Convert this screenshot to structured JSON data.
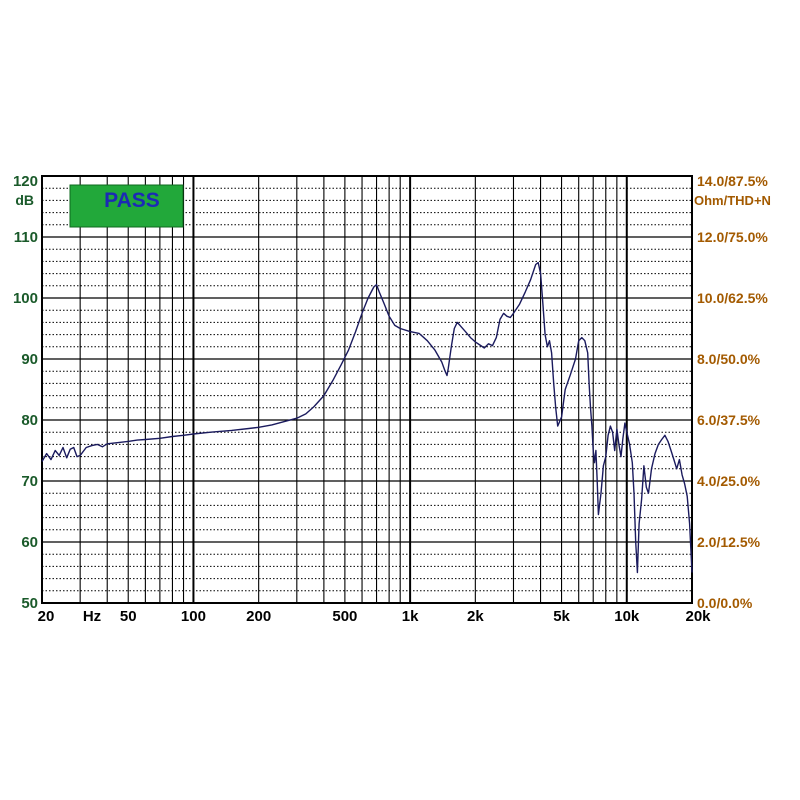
{
  "colors": {
    "background": "#ffffff",
    "grid": "#000000",
    "curve": "#1b1b5e",
    "left_axis_text": "#1a5a2a",
    "right_axis_text": "#a35a00",
    "badge_fill": "#22a83a",
    "badge_text": "#1c2ab5"
  },
  "badge": {
    "label": "PASS"
  },
  "chart_data": {
    "type": "line",
    "x_scale": "log",
    "xlim": [
      20,
      20000
    ],
    "ylim": [
      50,
      120
    ],
    "grid": true,
    "x_ticks": [
      {
        "value": 20,
        "label": "20"
      },
      {
        "value": 50,
        "label": "50"
      },
      {
        "value": 100,
        "label": "100"
      },
      {
        "value": 200,
        "label": "200"
      },
      {
        "value": 500,
        "label": "500"
      },
      {
        "value": 1000,
        "label": "1k"
      },
      {
        "value": 2000,
        "label": "2k"
      },
      {
        "value": 5000,
        "label": "5k"
      },
      {
        "value": 10000,
        "label": "10k"
      },
      {
        "value": 20000,
        "label": "20k"
      }
    ],
    "x_unit": "Hz",
    "y_ticks": [
      {
        "value": 50,
        "label": "50"
      },
      {
        "value": 60,
        "label": "60"
      },
      {
        "value": 70,
        "label": "70"
      },
      {
        "value": 80,
        "label": "80"
      },
      {
        "value": 90,
        "label": "90"
      },
      {
        "value": 100,
        "label": "100"
      },
      {
        "value": 110,
        "label": "110"
      },
      {
        "value": 120,
        "label": "120"
      }
    ],
    "y_unit": "dB",
    "y2_ticks": [
      {
        "value": 50,
        "label": "0.0/0.0%"
      },
      {
        "value": 60,
        "label": "2.0/12.5%"
      },
      {
        "value": 70,
        "label": "4.0/25.0%"
      },
      {
        "value": 80,
        "label": "6.0/37.5%"
      },
      {
        "value": 90,
        "label": "8.0/50.0%"
      },
      {
        "value": 100,
        "label": "10.0/62.5%"
      },
      {
        "value": 110,
        "label": "12.0/75.0%"
      },
      {
        "value": 120,
        "label": "14.0/87.5%"
      }
    ],
    "y2_unit": "Ohm/THD+N",
    "series": [
      {
        "points": [
          [
            20,
            73.2
          ],
          [
            21,
            74.5
          ],
          [
            22,
            73.5
          ],
          [
            23,
            75.0
          ],
          [
            24,
            74.2
          ],
          [
            25,
            75.5
          ],
          [
            26,
            73.8
          ],
          [
            27,
            75.2
          ],
          [
            28,
            75.5
          ],
          [
            29,
            74.0
          ],
          [
            30,
            74.2
          ],
          [
            32,
            75.5
          ],
          [
            34,
            75.8
          ],
          [
            36,
            76.0
          ],
          [
            38,
            75.6
          ],
          [
            40,
            76.1
          ],
          [
            45,
            76.3
          ],
          [
            50,
            76.5
          ],
          [
            55,
            76.7
          ],
          [
            60,
            76.8
          ],
          [
            70,
            77.0
          ],
          [
            80,
            77.3
          ],
          [
            90,
            77.5
          ],
          [
            100,
            77.7
          ],
          [
            120,
            78.0
          ],
          [
            150,
            78.3
          ],
          [
            180,
            78.6
          ],
          [
            200,
            78.8
          ],
          [
            230,
            79.2
          ],
          [
            260,
            79.7
          ],
          [
            300,
            80.3
          ],
          [
            330,
            81.0
          ],
          [
            360,
            82.2
          ],
          [
            400,
            84.0
          ],
          [
            440,
            86.5
          ],
          [
            480,
            89.0
          ],
          [
            520,
            91.5
          ],
          [
            560,
            94.5
          ],
          [
            600,
            97.5
          ],
          [
            640,
            100.0
          ],
          [
            680,
            101.8
          ],
          [
            700,
            102.2
          ],
          [
            720,
            101.0
          ],
          [
            760,
            99.0
          ],
          [
            800,
            97.0
          ],
          [
            850,
            95.5
          ],
          [
            900,
            95.0
          ],
          [
            1000,
            94.5
          ],
          [
            1100,
            94.2
          ],
          [
            1200,
            93.0
          ],
          [
            1300,
            91.5
          ],
          [
            1400,
            89.5
          ],
          [
            1450,
            88.0
          ],
          [
            1480,
            87.3
          ],
          [
            1500,
            88.5
          ],
          [
            1550,
            92.0
          ],
          [
            1600,
            95.0
          ],
          [
            1650,
            96.0
          ],
          [
            1700,
            95.5
          ],
          [
            1800,
            94.5
          ],
          [
            1900,
            93.5
          ],
          [
            2000,
            92.8
          ],
          [
            2100,
            92.3
          ],
          [
            2200,
            91.8
          ],
          [
            2300,
            92.5
          ],
          [
            2400,
            92.2
          ],
          [
            2500,
            93.5
          ],
          [
            2600,
            96.5
          ],
          [
            2700,
            97.5
          ],
          [
            2800,
            97.0
          ],
          [
            2900,
            96.8
          ],
          [
            3000,
            97.5
          ],
          [
            3200,
            99.0
          ],
          [
            3400,
            101.0
          ],
          [
            3600,
            103.0
          ],
          [
            3800,
            105.5
          ],
          [
            3900,
            105.8
          ],
          [
            4000,
            104.0
          ],
          [
            4100,
            99.0
          ],
          [
            4200,
            94.0
          ],
          [
            4300,
            92.0
          ],
          [
            4400,
            93.0
          ],
          [
            4500,
            91.0
          ],
          [
            4600,
            86.0
          ],
          [
            4700,
            82.0
          ],
          [
            4800,
            79.0
          ],
          [
            5000,
            80.5
          ],
          [
            5200,
            85.0
          ],
          [
            5500,
            87.5
          ],
          [
            5800,
            90.0
          ],
          [
            6000,
            93.0
          ],
          [
            6200,
            93.5
          ],
          [
            6400,
            93.0
          ],
          [
            6600,
            91.0
          ],
          [
            6700,
            86.0
          ],
          [
            6800,
            82.0
          ],
          [
            6900,
            79.0
          ],
          [
            7000,
            75.0
          ],
          [
            7100,
            73.0
          ],
          [
            7200,
            75.0
          ],
          [
            7300,
            70.0
          ],
          [
            7400,
            64.5
          ],
          [
            7600,
            68.0
          ],
          [
            7800,
            72.5
          ],
          [
            8000,
            74.0
          ],
          [
            8200,
            77.5
          ],
          [
            8400,
            79.0
          ],
          [
            8600,
            78.0
          ],
          [
            8800,
            75.0
          ],
          [
            9000,
            78.5
          ],
          [
            9200,
            76.0
          ],
          [
            9400,
            74.0
          ],
          [
            9600,
            77.0
          ],
          [
            9800,
            79.5
          ],
          [
            10000,
            78.0
          ],
          [
            10300,
            76.0
          ],
          [
            10600,
            73.0
          ],
          [
            10800,
            68.0
          ],
          [
            11000,
            60.0
          ],
          [
            11200,
            55.0
          ],
          [
            11400,
            63.0
          ],
          [
            11700,
            67.0
          ],
          [
            12000,
            72.5
          ],
          [
            12300,
            69.0
          ],
          [
            12600,
            68.0
          ],
          [
            13000,
            72.0
          ],
          [
            13500,
            74.5
          ],
          [
            14000,
            76.0
          ],
          [
            14500,
            76.8
          ],
          [
            15000,
            77.5
          ],
          [
            15500,
            76.5
          ],
          [
            16000,
            75.0
          ],
          [
            16500,
            73.5
          ],
          [
            17000,
            72.0
          ],
          [
            17500,
            73.5
          ],
          [
            18000,
            71.0
          ],
          [
            18500,
            69.5
          ],
          [
            19000,
            67.5
          ],
          [
            19500,
            63.0
          ],
          [
            20000,
            55.0
          ]
        ]
      }
    ]
  }
}
